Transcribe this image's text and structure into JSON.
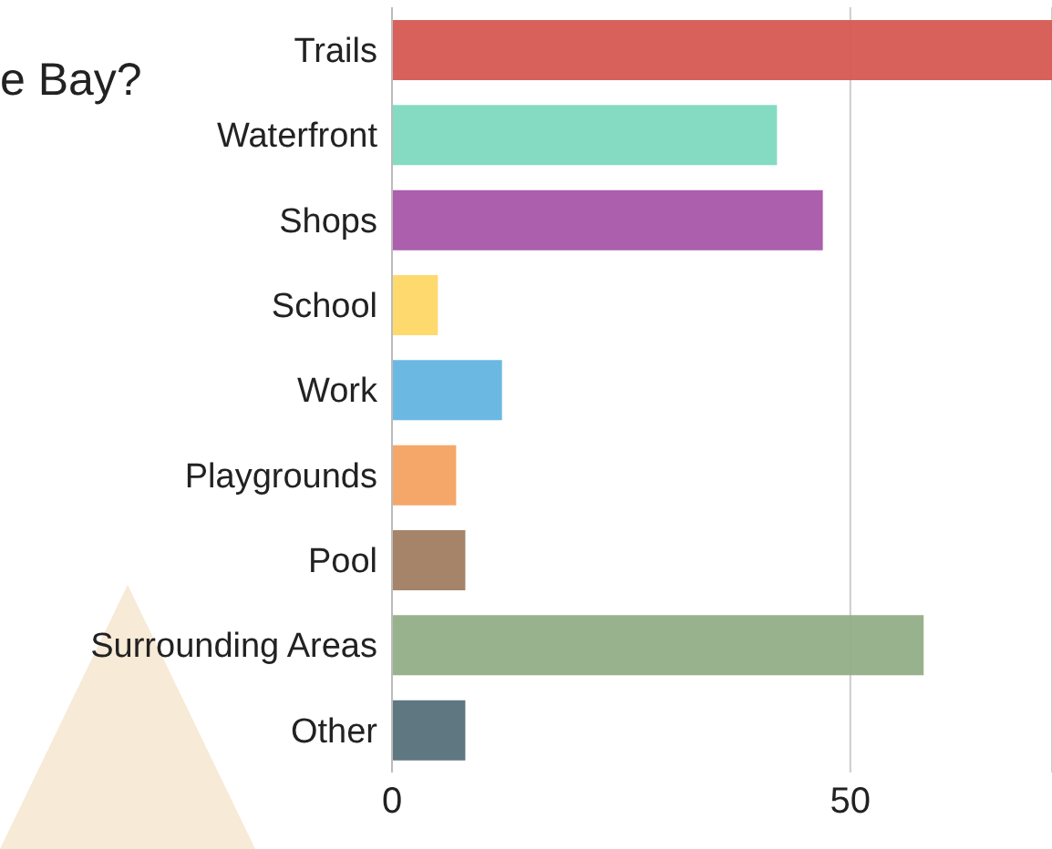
{
  "chart_data": {
    "type": "bar",
    "orientation": "horizontal",
    "title": "e Bay?",
    "categories": [
      "Trails",
      "Waterfront",
      "Shops",
      "School",
      "Work",
      "Playgrounds",
      "Pool",
      "Surrounding Areas",
      "Other"
    ],
    "values": [
      72,
      42,
      47,
      5,
      12,
      7,
      8,
      58,
      8
    ],
    "colors": [
      "#d65a52",
      "#7dd9bf",
      "#a656a8",
      "#fed766",
      "#63b5e2",
      "#f4a261",
      "#a07d62",
      "#93ae88",
      "#56707a"
    ],
    "xlim": [
      0,
      72
    ],
    "xticks": [
      0,
      50
    ],
    "grid": "x"
  }
}
